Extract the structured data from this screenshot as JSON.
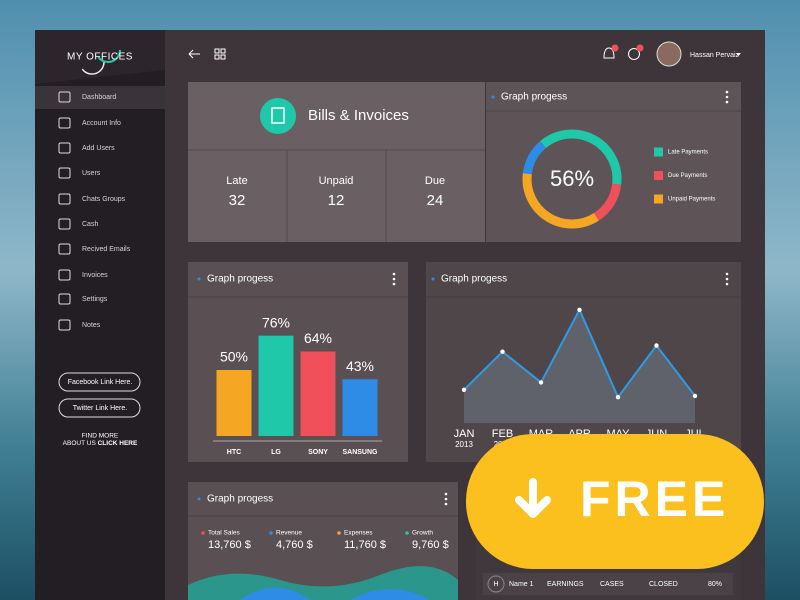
{
  "sidebar": {
    "brand": "MY OFFICES",
    "nav": [
      "Dashboard",
      "Account Info",
      "Add Users",
      "Users",
      "Chats Groups",
      "Cash",
      "Recived Emails",
      "Invoices",
      "Settings",
      "Notes"
    ],
    "social": [
      "Facebook Link Here.",
      "Twitter Link Here."
    ],
    "find_more": "FIND MORE",
    "about": "ABOUT US",
    "click_here": "CLICK HERE"
  },
  "header": {
    "user": "Hassan Pervaiz"
  },
  "bills": {
    "title": "Bills & Invoices",
    "stats": [
      {
        "label": "Late",
        "value": "32"
      },
      {
        "label": "Unpaid",
        "value": "12"
      },
      {
        "label": "Due",
        "value": "24"
      }
    ]
  },
  "sales_card": {
    "title": "Graph progess",
    "stats": [
      {
        "label": "Total Sales",
        "value": "13,760 $"
      },
      {
        "label": "Revenue",
        "value": "4,760 $"
      },
      {
        "label": "Expenses",
        "value": "11,760 $"
      },
      {
        "label": "Growth",
        "value": "9,760 $"
      }
    ]
  },
  "table": {
    "avatar": "H",
    "row": [
      "Name 1",
      "EARNINGS",
      "CASES",
      "CLOSED",
      "80%"
    ]
  },
  "promo": {
    "text": "FREE"
  },
  "chart_data": [
    {
      "type": "donut",
      "title": "Graph progess",
      "center_label": "56%",
      "values": [
        38,
        14,
        36,
        12
      ],
      "colors": [
        "#1fc8a8",
        "#f0505a",
        "#f5a623",
        "#2e8ce6"
      ],
      "legend": [
        {
          "name": "Late Payments",
          "color": "#1fc8a8"
        },
        {
          "name": "Due Payments",
          "color": "#f0505a"
        },
        {
          "name": "Unpaid Payments",
          "color": "#f5a623"
        }
      ]
    },
    {
      "type": "bar",
      "title": "Graph progess",
      "categories": [
        "HTC",
        "LG",
        "SONY",
        "SANSUNG"
      ],
      "values": [
        50,
        76,
        64,
        43
      ],
      "value_labels": [
        "50%",
        "76%",
        "64%",
        "43%"
      ],
      "colors": [
        "#f5a623",
        "#1fc8a8",
        "#f0505a",
        "#2e8ce6"
      ],
      "ylim": [
        0,
        100
      ]
    },
    {
      "type": "line",
      "title": "Graph progess",
      "categories": [
        "JAN",
        "FEB",
        "MAR",
        "APR",
        "MAY",
        "JUN",
        "JUL"
      ],
      "sublabel": "2013",
      "values": [
        27,
        58,
        33,
        92,
        21,
        63,
        22
      ],
      "color": "#2e9be6",
      "ylim": [
        0,
        100
      ]
    }
  ]
}
